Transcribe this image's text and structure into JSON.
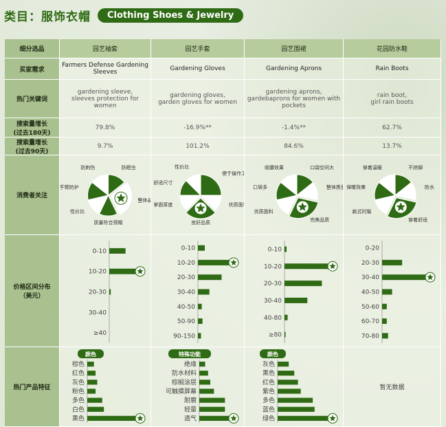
{
  "header": {
    "category_label": "类目：服饰衣帽",
    "category_en": "Clothing Shoes & Jewelry"
  },
  "row_labels": {
    "subcategory": "细分选品",
    "buyer_need": "买家需求",
    "keywords": "热门关键词",
    "growth180": [
      "搜索量增长",
      "(过去180天)"
    ],
    "growth90": [
      "搜索量增长",
      "(过去90天)"
    ],
    "concerns": "消费者关注",
    "price": [
      "价格区间分布",
      "（美元）"
    ],
    "features": "热门产品特征"
  },
  "columns": [
    {
      "name": "园艺袖套",
      "need": "Farmers Defense Gardening Sleeves",
      "keywords": [
        "gardening sleeve,",
        "sleeves protection for women"
      ],
      "g180": "79.8%",
      "g90": "9.7%"
    },
    {
      "name": "园艺手套",
      "need": "Gardening Gloves",
      "keywords": [
        "gardening gloves,",
        "garden gloves for women"
      ],
      "g180": "-16.9%**",
      "g90": "101.2%"
    },
    {
      "name": "园艺围裙",
      "need": "Gardening Aprons",
      "keywords": [
        "gardening aprons,",
        "gardebaprons for women with",
        "pockets"
      ],
      "g180": "-1.4%**",
      "g90": "84.6%"
    },
    {
      "name": "花园防水鞋",
      "need": "Rain Boots",
      "keywords": [
        "rain boot,",
        "girl rain boots"
      ],
      "g180": "62.7%",
      "g90": "13.7%"
    }
  ],
  "chart_data": [
    {
      "type": "pie",
      "title": "",
      "categories": [
        "防晒虫",
        "整体品质",
        "质量符合预期",
        "性价比",
        "手臂防护",
        "防刺伤"
      ],
      "values": [
        1,
        2,
        1,
        1,
        1,
        1
      ],
      "highlight": "整体品质",
      "colors": [
        "#2f6b14",
        "#ffffff"
      ]
    },
    {
      "type": "pie",
      "title": "",
      "categories": [
        "便于操作工具",
        "优质面料",
        "良好品质",
        "掌面厚度",
        "舒适尺寸",
        "性价比"
      ],
      "values": [
        2,
        1,
        2,
        1,
        1,
        1
      ],
      "highlight": "良好品质",
      "colors": [
        "#2f6b14",
        "#ffffff"
      ]
    },
    {
      "type": "pie",
      "title": "",
      "categories": [
        "口袋空间大",
        "整体质量",
        "完美品质",
        "优质面料",
        "口袋多",
        "收腰效果"
      ],
      "values": [
        1,
        1,
        2,
        1,
        1,
        1
      ],
      "highlight": "完美品质",
      "colors": [
        "#2f6b14",
        "#ffffff"
      ]
    },
    {
      "type": "pie",
      "title": "",
      "categories": [
        "不挤脚",
        "防水",
        "穿着舒适",
        "款式时髦",
        "保暖效果",
        "穿着温暖"
      ],
      "values": [
        1,
        1,
        2,
        1,
        1,
        1
      ],
      "highlight": "穿着舒适",
      "colors": [
        "#2f6b14",
        "#ffffff"
      ]
    },
    {
      "type": "bar",
      "orientation": "horizontal",
      "categories": [
        "0-10",
        "10-20",
        "20-30",
        "30-40",
        "≥40"
      ],
      "values": [
        22,
        40,
        2,
        0,
        0
      ],
      "highlight": "10-20"
    },
    {
      "type": "bar",
      "orientation": "horizontal",
      "categories": [
        "0-10",
        "10-20",
        "20-30",
        "30-40",
        "40-50",
        "50-90",
        "90-150"
      ],
      "values": [
        9,
        45,
        31,
        15,
        5,
        6,
        4
      ],
      "highlight": "10-20"
    },
    {
      "type": "bar",
      "orientation": "horizontal",
      "categories": [
        "0-10",
        "10-20",
        "20-30",
        "30-40",
        "40-80",
        "≥80"
      ],
      "values": [
        2,
        45,
        36,
        22,
        3,
        1
      ],
      "highlight": "10-20"
    },
    {
      "type": "bar",
      "orientation": "horizontal",
      "categories": [
        "0-20",
        "20-30",
        "30-40",
        "40-50",
        "50-60",
        "60-70",
        "70-80"
      ],
      "values": [
        0,
        30,
        70,
        15,
        7,
        7,
        9
      ],
      "highlight": "30-40"
    },
    {
      "type": "bar",
      "orientation": "horizontal",
      "title": "颜色",
      "categories": [
        "棕色",
        "红色",
        "灰色",
        "粉色",
        "多色",
        "白色",
        "黑色"
      ],
      "values": [
        8,
        10,
        12,
        10,
        18,
        20,
        62
      ],
      "highlight": "黑色"
    },
    {
      "type": "bar",
      "orientation": "horizontal",
      "title": "特殊功能",
      "categories": [
        "绝缘",
        "防水材料",
        "棕榈涂层",
        "可触摸屏幕",
        "耐磨",
        "轻量",
        "透气"
      ],
      "values": [
        8,
        12,
        15,
        20,
        35,
        35,
        45
      ],
      "highlight": "透气"
    },
    {
      "type": "bar",
      "orientation": "horizontal",
      "title": "颜色",
      "categories": [
        "灰色",
        "黑色",
        "红色",
        "紫色",
        "多色",
        "蓝色",
        "绿色"
      ],
      "values": [
        12,
        18,
        22,
        25,
        38,
        40,
        58
      ],
      "highlight": "绿色"
    }
  ],
  "no_data": "暂无数据",
  "colors": {
    "accent": "#2f6b14",
    "header_bg": "#a9c08f"
  }
}
